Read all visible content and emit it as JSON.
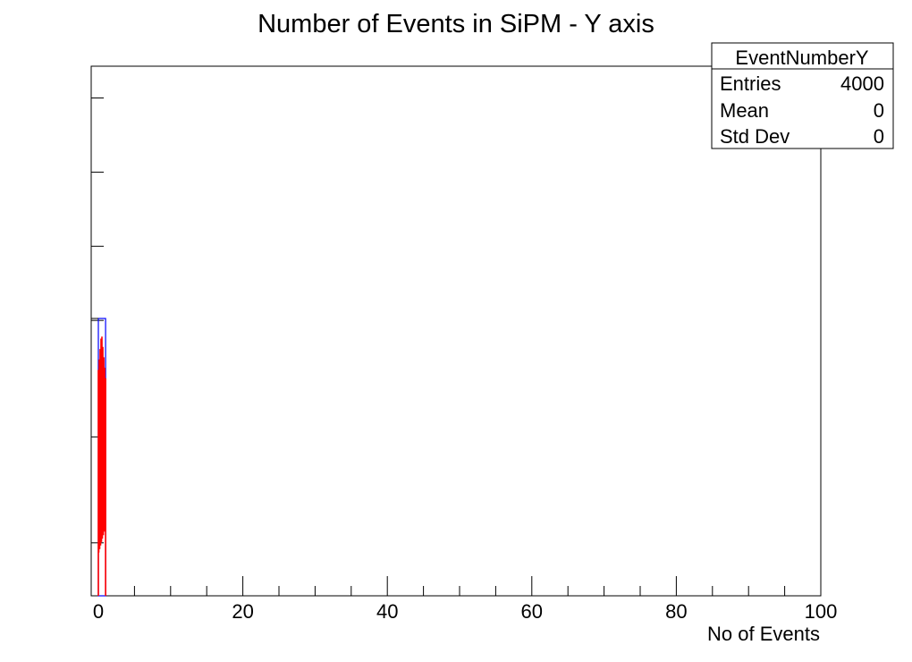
{
  "chart_data": {
    "type": "bar",
    "title": "Number of Events in SiPM - Y axis",
    "xlabel": "No of Events",
    "ylabel": "",
    "xlim": [
      0,
      100
    ],
    "x_ticks": [
      "0",
      "20",
      "40",
      "60",
      "80",
      "100"
    ],
    "grid": false,
    "bins": [
      {
        "x_low": 0,
        "x_high": 1,
        "value": 4000
      }
    ],
    "stats_box": {
      "name": "EventNumberY",
      "rows": [
        {
          "label": "Entries",
          "value": "4000"
        },
        {
          "label": "Mean",
          "value": "0"
        },
        {
          "label": "Std Dev",
          "value": "0"
        }
      ]
    },
    "colors": {
      "histogram_line": "#0000ff",
      "overlay": "#ff0000"
    }
  }
}
